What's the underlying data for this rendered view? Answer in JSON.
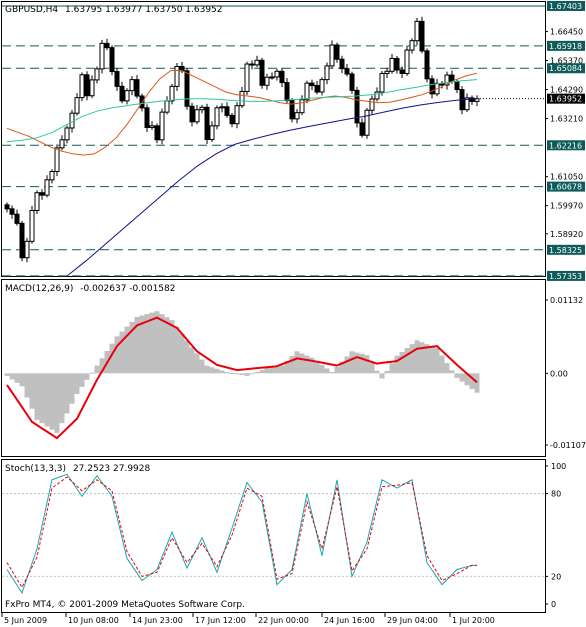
{
  "main_header": {
    "symbol": "GBPUSD,H4",
    "ohlc": "1.63795 1.63977 1.63750 1.63952"
  },
  "macd_header": {
    "name": "MACD(12,26,9)",
    "values": "-0.002637 -0.001582"
  },
  "stoch_header": {
    "name": "Stoch(13,3,3)",
    "values": "27.2523 27.9928"
  },
  "watermark": "FxPro MT4, © 2001-2009 MetaQuotes Software Corp.",
  "colors": {
    "background": "#ffffff",
    "bar_up": "#000000",
    "bar_down": "#000000",
    "level_line": "#0f5a5a",
    "level_tag": "#0f5a5a",
    "current_price_tag": "#000000",
    "ma_fast": "#e0541a",
    "ma_medium": "#2ec99e",
    "ma_slow": "#11118f",
    "macd_histogram": "#c0c0c0",
    "macd_signal": "#e8000b",
    "stoch_main": "#1aa6b2",
    "stoch_signal": "#e8000b"
  },
  "chart_data": [
    {
      "type": "candlestick",
      "title": "GBPUSD,H4",
      "ylim": [
        1.5735,
        1.6755
      ],
      "price_axis_labels": [
        "1.66450",
        "1.65370",
        "1.64290",
        "1.63210",
        "1.61050",
        "1.59970",
        "1.58920"
      ],
      "levels": [
        {
          "value": 1.67403,
          "label": "1.67403"
        },
        {
          "value": 1.65918,
          "label": "1.65918"
        },
        {
          "value": 1.65084,
          "label": "1.65084"
        },
        {
          "value": 1.62216,
          "label": "1.62216"
        },
        {
          "value": 1.60678,
          "label": "1.60678"
        },
        {
          "value": 1.58325,
          "label": "1.58325"
        },
        {
          "value": 1.57353,
          "label": "1.57353"
        }
      ],
      "current_price": {
        "value": 1.63952,
        "label": "1.63952"
      },
      "x_labels": [
        "5 Jun 2009",
        "10 Jun 08:00",
        "14 Jun 23:00",
        "17 Jun 12:00",
        "22 Jun 00:00",
        "24 Jun 16:00",
        "29 Jun 04:00",
        "1 Jul 20:00"
      ],
      "closes": [
        1.5985,
        1.5965,
        1.5931,
        1.5803,
        1.5864,
        1.5979,
        1.6045,
        1.6036,
        1.6093,
        1.6124,
        1.6212,
        1.6242,
        1.6286,
        1.6341,
        1.6399,
        1.6484,
        1.6406,
        1.6465,
        1.6506,
        1.6601,
        1.6585,
        1.6496,
        1.6441,
        1.6387,
        1.6425,
        1.6466,
        1.6405,
        1.6361,
        1.6288,
        1.6294,
        1.6242,
        1.6345,
        1.6387,
        1.6441,
        1.6515,
        1.6499,
        1.6367,
        1.6309,
        1.6354,
        1.6363,
        1.6243,
        1.6294,
        1.6361,
        1.6365,
        1.6333,
        1.6302,
        1.6369,
        1.6422,
        1.6524,
        1.6521,
        1.6538,
        1.6445,
        1.6475,
        1.6476,
        1.6497,
        1.6455,
        1.6388,
        1.632,
        1.6343,
        1.6391,
        1.6453,
        1.6444,
        1.642,
        1.6466,
        1.6517,
        1.6595,
        1.6542,
        1.6507,
        1.6487,
        1.6426,
        1.6305,
        1.6259,
        1.6352,
        1.6394,
        1.642,
        1.6489,
        1.6497,
        1.6545,
        1.6502,
        1.6489,
        1.6576,
        1.6611,
        1.6683,
        1.6573,
        1.6469,
        1.6413,
        1.6452,
        1.6446,
        1.6483,
        1.6459,
        1.6429,
        1.6354,
        1.6398,
        1.6385,
        1.6395
      ],
      "ma_fast": [
        1.6285,
        1.627,
        1.6255,
        1.6235,
        1.6215,
        1.62,
        1.619,
        1.6185,
        1.619,
        1.6215,
        1.625,
        1.63,
        1.636,
        1.642,
        1.647,
        1.65,
        1.65,
        1.648,
        1.646,
        1.644,
        1.642,
        1.641,
        1.6405,
        1.64,
        1.639,
        1.638,
        1.6375,
        1.638,
        1.639,
        1.64,
        1.6405,
        1.64,
        1.639,
        1.6385,
        1.638,
        1.6382,
        1.639,
        1.64,
        1.641,
        1.6425,
        1.6445,
        1.6465,
        1.648,
        1.649
      ],
      "ma_fast_x_start": 0,
      "ma_medium": [
        1.6235,
        1.624,
        1.625,
        1.627,
        1.63,
        1.633,
        1.635,
        1.6362,
        1.637,
        1.6378,
        1.6385,
        1.639,
        1.6395,
        1.6395,
        1.6392,
        1.6388,
        1.6385,
        1.6385,
        1.6388,
        1.6392,
        1.6397,
        1.64,
        1.6402,
        1.6405,
        1.641,
        1.6418,
        1.6428,
        1.6438,
        1.6448,
        1.6455,
        1.6462,
        1.6466
      ],
      "ma_slow": [
        1.5735,
        1.579,
        1.585,
        1.591,
        1.597,
        1.603,
        1.609,
        1.6145,
        1.619,
        1.6225,
        1.6245,
        1.6262,
        1.6278,
        1.6292,
        1.6305,
        1.6318,
        1.633,
        1.6345,
        1.636,
        1.6372,
        1.6382,
        1.639,
        1.6395
      ],
      "ma_slow_x_start": 62
    },
    {
      "type": "bar",
      "title": "MACD(12,26,9)",
      "ylim": [
        -0.01107,
        0.01132
      ],
      "axis_labels": [
        "0.01132",
        "0.00",
        "-0.01107"
      ],
      "histogram_keypoints": [
        [
          0,
          -0.0004
        ],
        [
          3,
          -0.002
        ],
        [
          6,
          -0.0072
        ],
        [
          10,
          -0.0092
        ],
        [
          14,
          -0.0032
        ],
        [
          18,
          0.0012
        ],
        [
          22,
          0.0057
        ],
        [
          26,
          0.0087
        ],
        [
          30,
          0.0096
        ],
        [
          33,
          0.0082
        ],
        [
          37,
          0.004
        ],
        [
          40,
          0.0012
        ],
        [
          44,
          0.0002
        ],
        [
          48,
          -0.0004
        ],
        [
          52,
          0.0008
        ],
        [
          55,
          0.0012
        ],
        [
          58,
          0.0034
        ],
        [
          61,
          0.0024
        ],
        [
          65,
          0.0002
        ],
        [
          69,
          0.0034
        ],
        [
          72,
          0.0028
        ],
        [
          75,
          -0.0008
        ],
        [
          78,
          0.0027
        ],
        [
          82,
          0.0051
        ],
        [
          86,
          0.0039
        ],
        [
          90,
          -0.0007
        ],
        [
          94,
          -0.003
        ]
      ],
      "signal_keypoints": [
        [
          0,
          -0.0018
        ],
        [
          5,
          -0.0075
        ],
        [
          10,
          -0.01
        ],
        [
          14,
          -0.007
        ],
        [
          18,
          -0.001
        ],
        [
          22,
          0.0042
        ],
        [
          26,
          0.0074
        ],
        [
          30,
          0.0086
        ],
        [
          34,
          0.007
        ],
        [
          38,
          0.0034
        ],
        [
          42,
          0.0013
        ],
        [
          46,
          0.0005
        ],
        [
          50,
          0.0008
        ],
        [
          54,
          0.0011
        ],
        [
          58,
          0.0023
        ],
        [
          62,
          0.0018
        ],
        [
          66,
          0.0012
        ],
        [
          70,
          0.0025
        ],
        [
          74,
          0.0015
        ],
        [
          78,
          0.0019
        ],
        [
          82,
          0.0038
        ],
        [
          86,
          0.0042
        ],
        [
          90,
          0.0013
        ],
        [
          94,
          -0.0014
        ]
      ]
    },
    {
      "type": "line",
      "title": "Stoch(13,3,3)",
      "ylim": [
        0,
        100
      ],
      "axis_labels": [
        "100",
        "80",
        "20",
        "0"
      ],
      "main_keypoints": [
        [
          0,
          25
        ],
        [
          3,
          8
        ],
        [
          6,
          40
        ],
        [
          9,
          90
        ],
        [
          12,
          94
        ],
        [
          15,
          78
        ],
        [
          18,
          93
        ],
        [
          21,
          78
        ],
        [
          24,
          33
        ],
        [
          27,
          17
        ],
        [
          30,
          25
        ],
        [
          33,
          52
        ],
        [
          36,
          26
        ],
        [
          39,
          48
        ],
        [
          42,
          23
        ],
        [
          45,
          55
        ],
        [
          48,
          88
        ],
        [
          51,
          74
        ],
        [
          54,
          14
        ],
        [
          57,
          25
        ],
        [
          60,
          80
        ],
        [
          63,
          35
        ],
        [
          66,
          90
        ],
        [
          69,
          20
        ],
        [
          72,
          45
        ],
        [
          75,
          90
        ],
        [
          78,
          84
        ],
        [
          81,
          90
        ],
        [
          84,
          30
        ],
        [
          87,
          14
        ],
        [
          90,
          25
        ],
        [
          93,
          28
        ]
      ],
      "signal_keypoints": [
        [
          0,
          30
        ],
        [
          3,
          12
        ],
        [
          6,
          34
        ],
        [
          9,
          84
        ],
        [
          12,
          92
        ],
        [
          15,
          82
        ],
        [
          18,
          90
        ],
        [
          21,
          82
        ],
        [
          24,
          38
        ],
        [
          27,
          20
        ],
        [
          30,
          23
        ],
        [
          33,
          48
        ],
        [
          36,
          30
        ],
        [
          39,
          44
        ],
        [
          42,
          27
        ],
        [
          45,
          50
        ],
        [
          48,
          84
        ],
        [
          51,
          78
        ],
        [
          54,
          18
        ],
        [
          57,
          22
        ],
        [
          60,
          74
        ],
        [
          63,
          40
        ],
        [
          66,
          85
        ],
        [
          69,
          24
        ],
        [
          72,
          40
        ],
        [
          75,
          85
        ],
        [
          78,
          86
        ],
        [
          81,
          88
        ],
        [
          84,
          35
        ],
        [
          87,
          17
        ],
        [
          90,
          22
        ],
        [
          93,
          28
        ]
      ]
    }
  ]
}
